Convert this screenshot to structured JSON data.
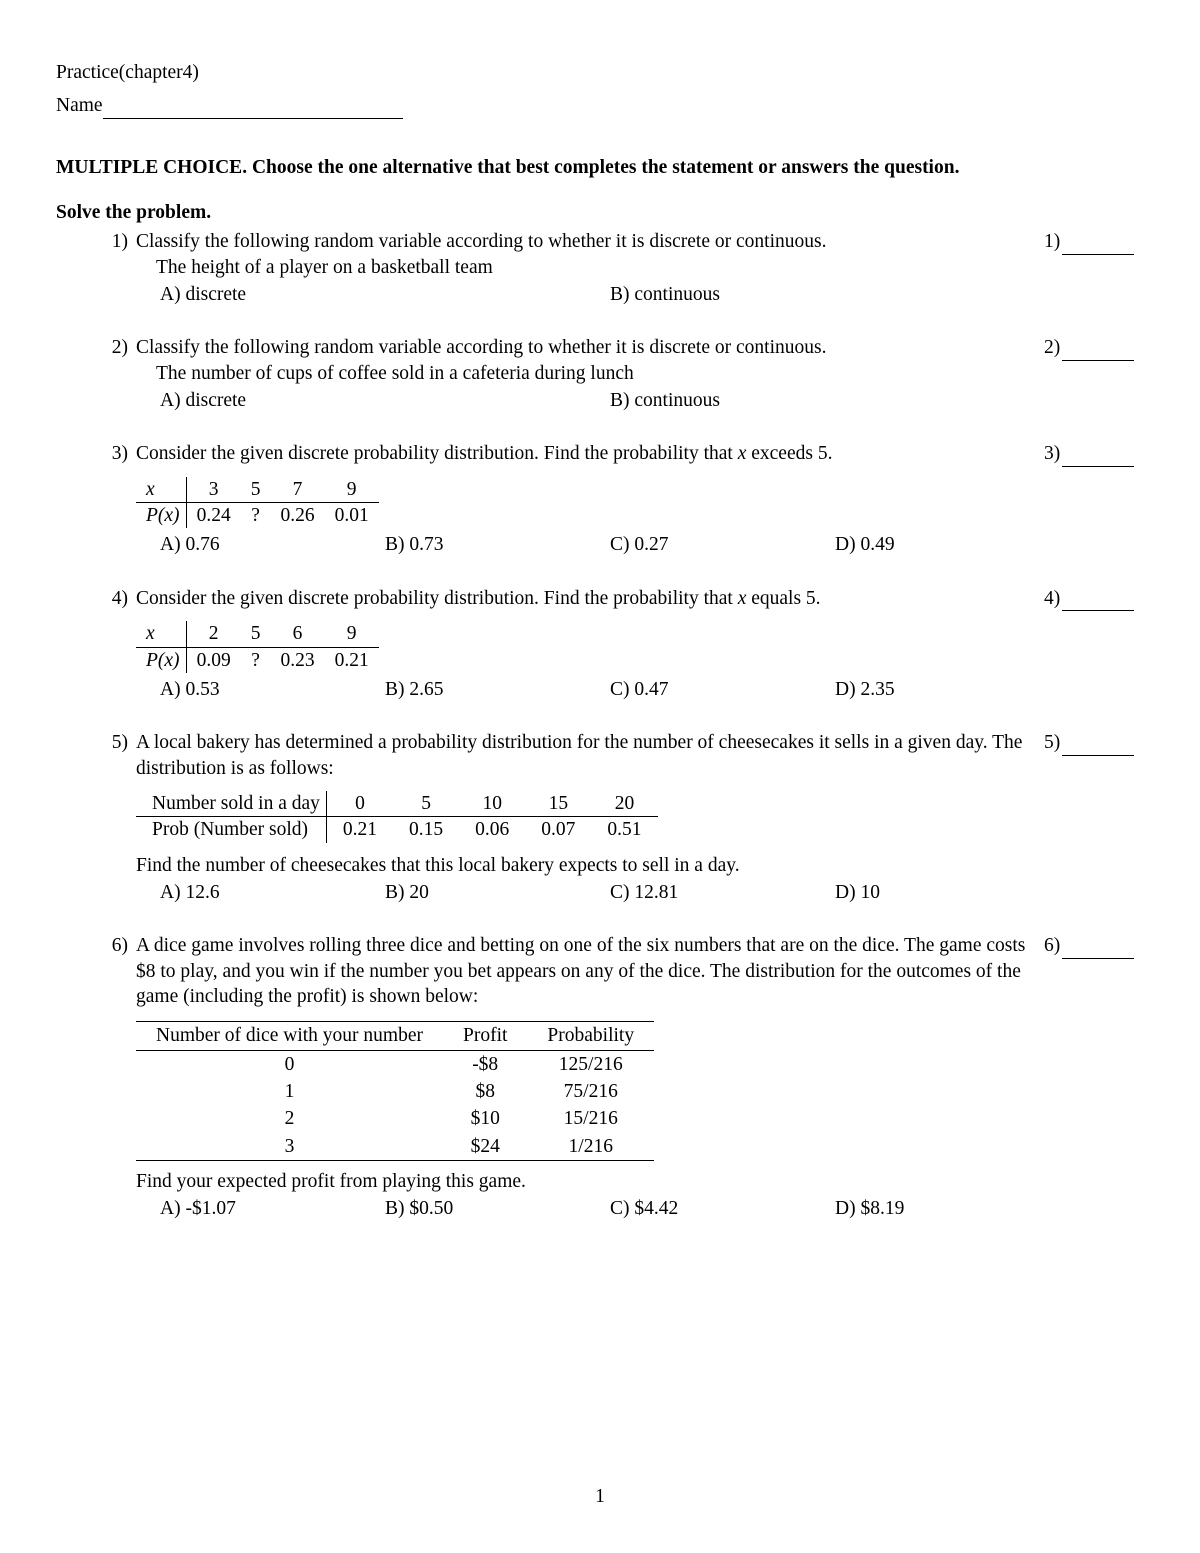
{
  "header": {
    "title": "Practice(chapter4)",
    "name_label": "Name"
  },
  "instructions": "MULTIPLE CHOICE.  Choose the one alternative that best completes the statement or answers the question.",
  "section_heading": "Solve the problem.",
  "page_number": "1",
  "questions": [
    {
      "num": "1)",
      "stem": "Classify the following random variable according to whether it is discrete or continuous.",
      "sub": "The height of a player on a basketball team",
      "options": [
        "A) discrete",
        "B) continuous"
      ],
      "option_layout": 2,
      "ans_label": "1)"
    },
    {
      "num": "2)",
      "stem": "Classify the following random variable according to whether it is discrete or continuous.",
      "sub": "The number of cups of coffee sold in a cafeteria during lunch",
      "options": [
        "A) discrete",
        "B) continuous"
      ],
      "option_layout": 2,
      "ans_label": "2)"
    },
    {
      "num": "3)",
      "stem_html": "Consider the given discrete probability distribution. Find the probability that <i>x</i> exceeds 5.",
      "dist": {
        "row1_head": "x",
        "row2_head": "P(x)",
        "xs": [
          "3",
          "5",
          "7",
          "9"
        ],
        "ps": [
          "0.24",
          "?",
          "0.26",
          "0.01"
        ]
      },
      "options": [
        "A) 0.76",
        "B) 0.73",
        "C) 0.27",
        "D) 0.49"
      ],
      "option_layout": 4,
      "ans_label": "3)"
    },
    {
      "num": "4)",
      "stem_html": "Consider the given discrete probability distribution. Find the probability that <i>x</i> equals 5.",
      "dist": {
        "row1_head": "x",
        "row2_head": "P(x)",
        "xs": [
          "2",
          "5",
          "6",
          "9"
        ],
        "ps": [
          "0.09",
          "?",
          "0.23",
          "0.21"
        ]
      },
      "options": [
        "A) 0.53",
        "B) 2.65",
        "C) 0.47",
        "D) 2.35"
      ],
      "option_layout": 4,
      "ans_label": "4)"
    },
    {
      "num": "5)",
      "stem": "A local bakery has determined a probability distribution for the number of cheesecakes it sells in a given day. The distribution is as follows:",
      "dist_wide": {
        "row1_head": "Number sold in a day",
        "row2_head": "Prob (Number sold)",
        "xs": [
          "0",
          "5",
          "10",
          "15",
          "20"
        ],
        "ps": [
          "0.21",
          "0.15",
          "0.06",
          "0.07",
          "0.51"
        ]
      },
      "followup": "Find the number of cheesecakes that this local bakery expects to sell in a day.",
      "options": [
        "A) 12.6",
        "B) 20",
        "C) 12.81",
        "D) 10"
      ],
      "option_layout": 4,
      "ans_label": "5)"
    },
    {
      "num": "6)",
      "stem": "A dice game involves rolling three dice and betting on one of the six numbers that are on the dice. The game costs $8 to play, and you win if the number you bet appears on any of the dice. The distribution for the outcomes of the game (including the profit) is shown below:",
      "outcome_table": {
        "headers": [
          "Number of dice with your number",
          "Profit",
          "Probability"
        ],
        "rows": [
          [
            "0",
            "‑$8",
            "125/216"
          ],
          [
            "1",
            "$8",
            "75/216"
          ],
          [
            "2",
            "$10",
            "15/216"
          ],
          [
            "3",
            "$24",
            "1/216"
          ]
        ]
      },
      "followup": "Find your expected profit from playing this game.",
      "options": [
        "A) ‑$1.07",
        "B) $0.50",
        "C) $4.42",
        "D) $8.19"
      ],
      "option_layout": 4,
      "ans_label": "6)"
    }
  ]
}
